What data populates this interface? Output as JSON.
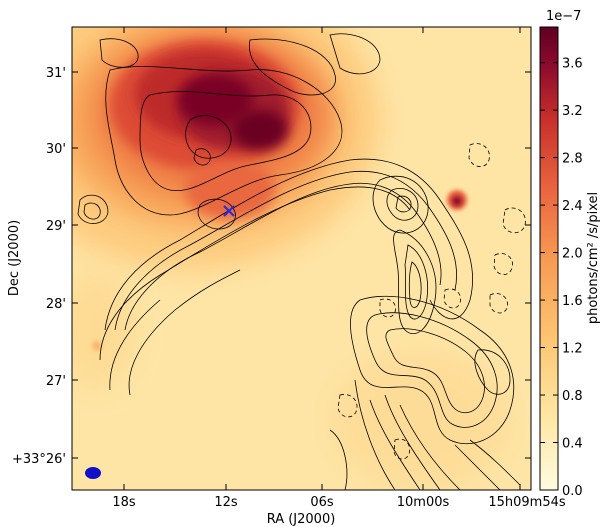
{
  "chart_data": {
    "type": "heatmap",
    "title": "",
    "xlabel": "RA (J2000)",
    "ylabel": "Dec (J2000)",
    "x_ticks": [
      "18s",
      "12s",
      "06s",
      "10m00s",
      "15h09m54s"
    ],
    "y_ticks": [
      "31'",
      "30'",
      "29'",
      "28'",
      "27'",
      "+33°26'"
    ],
    "colorbar": {
      "label": "photons/cm² /s/pixel",
      "offset_text": "1e−7",
      "ticks": [
        "3.6",
        "3.2",
        "2.8",
        "2.4",
        "2.0",
        "1.6",
        "1.2",
        "0.8",
        "0.4",
        "0.0"
      ],
      "tick_values": [
        3.6,
        3.2,
        2.8,
        2.4,
        2.0,
        1.6,
        1.2,
        0.8,
        0.4,
        0.0
      ],
      "range": [
        0.0,
        3.9
      ],
      "colormap": "spectral-reversed (pale yellow → orange → dark red)",
      "colors": [
        "#fffbe1",
        "#fee8a6",
        "#fdc774",
        "#f79a52",
        "#e8613e",
        "#c7302b",
        "#8b0a2d",
        "#5e0022"
      ]
    },
    "markers": [
      {
        "type": "cross",
        "color": "#2a2ad8",
        "ra": "15h10m11.7s",
        "dec": "+33°29.2'"
      }
    ],
    "beam": {
      "color": "#1010c8",
      "corner": "bottom-left"
    },
    "contours": {
      "color": "#000000",
      "negative_style": "dashed"
    },
    "emission_regions": [
      {
        "name": "bright extended emission",
        "location": "upper-left",
        "peak": 3.8
      },
      {
        "name": "compact source",
        "location": "right of center",
        "peak": 3.0
      }
    ],
    "grid": false
  }
}
